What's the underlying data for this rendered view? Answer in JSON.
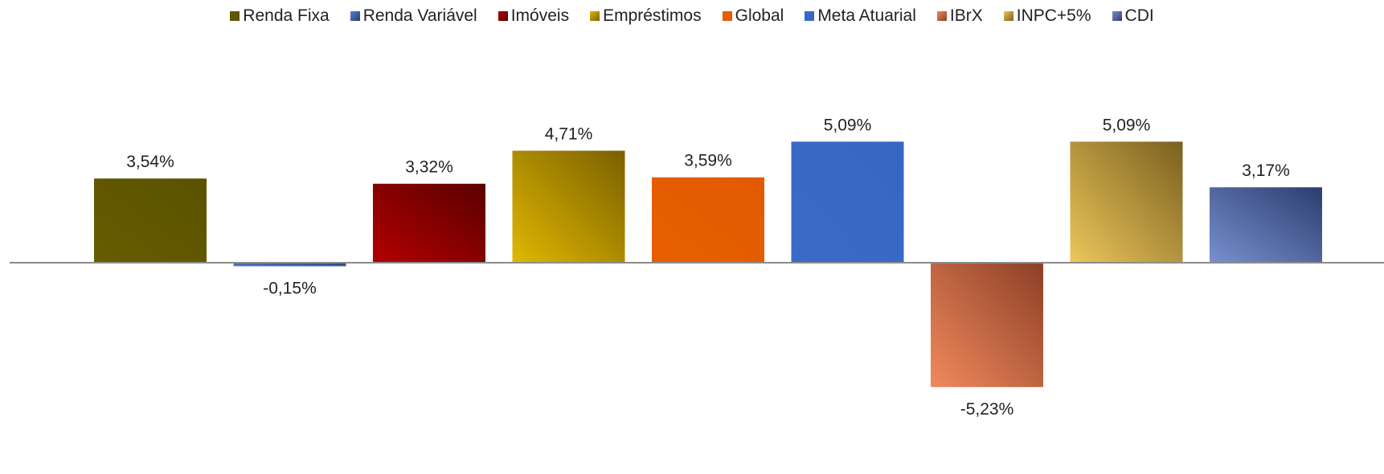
{
  "chart_data": {
    "type": "bar",
    "categories": [
      "Renda Fixa",
      "Renda Variável",
      "Imóveis",
      "Empréstimos",
      "Global",
      "Meta Atuarial",
      "IBrX",
      "INPC+5%",
      "CDI"
    ],
    "values": [
      3.54,
      -0.15,
      3.32,
      4.71,
      3.59,
      5.09,
      -5.23,
      5.09,
      3.17
    ],
    "data_labels": [
      "3,54%",
      "-0,15%",
      "3,32%",
      "4,71%",
      "3,59%",
      "5,09%",
      "-5,23%",
      "5,09%",
      "3,17%"
    ],
    "legend_position": "top",
    "grid": false,
    "xlabel": "",
    "ylabel": "",
    "ylim": [
      -5.5,
      5.6
    ],
    "colors": [
      {
        "from": "#675c00",
        "to": "#5a5200"
      },
      {
        "from": "#5a7fc8",
        "to": "#1f3f7a"
      },
      {
        "from": "#b30000",
        "to": "#5a0000"
      },
      {
        "from": "#e0b800",
        "to": "#7a6000"
      },
      {
        "from": "#e85f00",
        "to": "#e25a00"
      },
      {
        "from": "#3a6bc8",
        "to": "#3566c2"
      },
      {
        "from": "#f08a5d",
        "to": "#8c3f26"
      },
      {
        "from": "#ecc75a",
        "to": "#7a6020"
      },
      {
        "from": "#7890d0",
        "to": "#2c3d6e"
      }
    ]
  }
}
